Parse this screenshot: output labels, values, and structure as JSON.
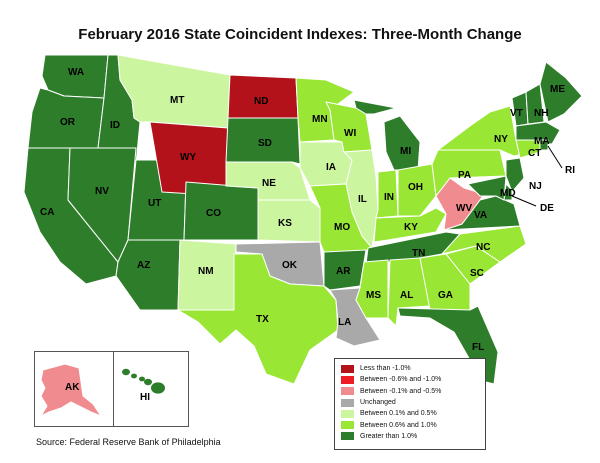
{
  "title": "February 2016 State Coincident Indexes: Three-Month Change",
  "source": "Source: Federal Reserve Bank of Philadelphia",
  "colors": {
    "lt_neg1": "#b3121a",
    "neg06_neg1": "#ee1c25",
    "neg01_neg05": "#f08c8f",
    "unchanged": "#a9a9a9",
    "p01_p05": "#ccf5a0",
    "p06_p1": "#99e635",
    "gt1": "#2e7d2a"
  },
  "legend": [
    {
      "key": "lt_neg1",
      "label": "Less than -1.0%"
    },
    {
      "key": "neg06_neg1",
      "label": "Between -0.6% and -1.0%"
    },
    {
      "key": "neg01_neg05",
      "label": "Between -0.1% and -0.5%"
    },
    {
      "key": "unchanged",
      "label": "Unchanged"
    },
    {
      "key": "p01_p05",
      "label": "Between 0.1% and 0.5%"
    },
    {
      "key": "p06_p1",
      "label": "Between 0.6% and 1.0%"
    },
    {
      "key": "gt1",
      "label": "Greater than 1.0%"
    }
  ],
  "states": {
    "WA": "gt1",
    "OR": "gt1",
    "CA": "gt1",
    "ID": "gt1",
    "NV": "gt1",
    "AZ": "gt1",
    "UT": "gt1",
    "MT": "p01_p05",
    "WY": "lt_neg1",
    "CO": "gt1",
    "NM": "p01_p05",
    "ND": "lt_neg1",
    "SD": "gt1",
    "NE": "p01_p05",
    "KS": "p01_p05",
    "OK": "unchanged",
    "TX": "p06_p1",
    "MN": "p06_p1",
    "IA": "p01_p05",
    "MO": "p06_p1",
    "AR": "gt1",
    "LA": "unchanged",
    "WI": "p06_p1",
    "IL": "p01_p05",
    "MI": "gt1",
    "IN": "p06_p1",
    "OH": "p06_p1",
    "KY": "p06_p1",
    "TN": "gt1",
    "MS": "p06_p1",
    "AL": "p06_p1",
    "GA": "p06_p1",
    "FL": "gt1",
    "SC": "p06_p1",
    "NC": "p06_p1",
    "VA": "gt1",
    "WV": "neg01_neg05",
    "PA": "p06_p1",
    "NY": "p06_p1",
    "VT": "gt1",
    "NH": "gt1",
    "ME": "gt1",
    "MA": "gt1",
    "RI": "gt1",
    "CT": "p06_p1",
    "NJ": "gt1",
    "DE": "gt1",
    "MD": "gt1",
    "AK": "neg01_neg05",
    "HI": "gt1"
  },
  "labels": {
    "WA": "WA",
    "OR": "OR",
    "CA": "CA",
    "ID": "ID",
    "NV": "NV",
    "AZ": "AZ",
    "UT": "UT",
    "MT": "MT",
    "WY": "WY",
    "CO": "CO",
    "NM": "NM",
    "ND": "ND",
    "SD": "SD",
    "NE": "NE",
    "KS": "KS",
    "OK": "OK",
    "TX": "TX",
    "MN": "MN",
    "IA": "IA",
    "MO": "MO",
    "AR": "AR",
    "LA": "LA",
    "WI": "WI",
    "IL": "IL",
    "MI": "MI",
    "IN": "IN",
    "OH": "OH",
    "KY": "KY",
    "TN": "TN",
    "MS": "MS",
    "AL": "AL",
    "GA": "GA",
    "FL": "FL",
    "SC": "SC",
    "NC": "NC",
    "VA": "VA",
    "WV": "WV",
    "PA": "PA",
    "NY": "NY",
    "VT": "VT",
    "NH": "NH",
    "ME": "ME",
    "MA": "MA",
    "RI": "RI",
    "CT": "CT",
    "NJ": "NJ",
    "DE": "DE",
    "MD": "MD",
    "AK": "AK",
    "HI": "HI"
  }
}
